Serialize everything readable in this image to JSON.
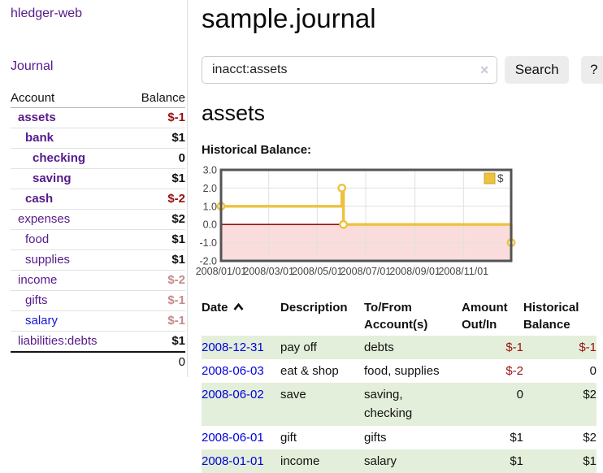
{
  "brand": "hledger-web",
  "sidebar": {
    "journal_link": "Journal",
    "accounts": {
      "col_account": "Account",
      "col_balance": "Balance",
      "rows": [
        {
          "name": "assets",
          "depth": 1,
          "bold": true,
          "balance": "$-1",
          "tone": "neg"
        },
        {
          "name": "bank",
          "depth": 2,
          "bold": true,
          "balance": "$1",
          "tone": "pos"
        },
        {
          "name": "checking",
          "depth": 3,
          "bold": true,
          "balance": "0",
          "tone": "pos"
        },
        {
          "name": "saving",
          "depth": 3,
          "bold": true,
          "balance": "$1",
          "tone": "pos"
        },
        {
          "name": "cash",
          "depth": 2,
          "bold": true,
          "balance": "$-2",
          "tone": "neg"
        },
        {
          "name": "expenses",
          "depth": 1,
          "bold": false,
          "balance": "$2",
          "tone": "pos"
        },
        {
          "name": "food",
          "depth": 2,
          "bold": false,
          "balance": "$1",
          "tone": "pos"
        },
        {
          "name": "supplies",
          "depth": 2,
          "bold": false,
          "balance": "$1",
          "tone": "pos"
        },
        {
          "name": "income",
          "depth": 1,
          "bold": false,
          "balance": "$-2",
          "tone": "neg-muted"
        },
        {
          "name": "gifts",
          "depth": 2,
          "bold": false,
          "balance": "$-1",
          "tone": "neg-muted"
        },
        {
          "name": "salary",
          "depth": 2,
          "bold": false,
          "balance": "$-1",
          "tone": "neg-muted",
          "link_style": "unvisited"
        },
        {
          "name": "liabilities:debts",
          "depth": 1,
          "bold": false,
          "balance": "$1",
          "tone": "pos"
        }
      ],
      "total": "0"
    }
  },
  "header": {
    "title": "sample.journal"
  },
  "search": {
    "value": "inacct:assets",
    "clear_icon": "✕",
    "search_button": "Search",
    "help_button": "?"
  },
  "account_page": {
    "heading": "assets",
    "chart_title": "Historical Balance:"
  },
  "chart_data": {
    "type": "line",
    "title": "Historical Balance:",
    "step": true,
    "xlim_days": [
      0,
      365
    ],
    "ylim": [
      -2,
      3
    ],
    "yticks": [
      {
        "value": 3,
        "label": "3.0"
      },
      {
        "value": 2,
        "label": "2.0"
      },
      {
        "value": 1,
        "label": "1.0"
      },
      {
        "value": 0,
        "label": "0.0"
      },
      {
        "value": -1,
        "label": "-1.0"
      },
      {
        "value": -2,
        "label": "-2.0"
      }
    ],
    "xticks": [
      {
        "day": 0,
        "label": "2008/01/01"
      },
      {
        "day": 60,
        "label": "2008/03/01"
      },
      {
        "day": 121,
        "label": "2008/05/01"
      },
      {
        "day": 182,
        "label": "2008/07/01"
      },
      {
        "day": 244,
        "label": "2008/09/01"
      },
      {
        "day": 305,
        "label": "2008/11/01"
      }
    ],
    "series": [
      {
        "name": "$",
        "color": "#edc240",
        "points": [
          {
            "date": "2008-01-01",
            "day": 0,
            "value": 1
          },
          {
            "date": "2008-06-01",
            "day": 152,
            "value": 2
          },
          {
            "date": "2008-06-03",
            "day": 154,
            "value": 0
          },
          {
            "date": "2008-12-31",
            "day": 365,
            "value": -1
          }
        ]
      }
    ],
    "legend": {
      "label": "$",
      "position": "top-right"
    },
    "styles": {
      "negative_region_fill": "#fbdcdc",
      "zero_line_color": "#991111",
      "grid_color": "#e0e0e0",
      "border_color": "#545454",
      "marker_fill": "#ffffff",
      "tick_label_color": "#444444"
    }
  },
  "transactions": {
    "columns": [
      "Date",
      "Description",
      "To/From Account(s)",
      "Amount Out/In",
      "Historical Balance"
    ],
    "sort_icon": "chevron-up",
    "rows": [
      {
        "date": "2008-12-31",
        "description": "pay off",
        "accounts": "debts",
        "amount": "$-1",
        "amount_negative": true,
        "balance": "$-1",
        "balance_negative": true
      },
      {
        "date": "2008-06-03",
        "description": "eat & shop",
        "accounts": "food, supplies",
        "amount": "$-2",
        "amount_negative": true,
        "balance": "0",
        "balance_negative": false
      },
      {
        "date": "2008-06-02",
        "description": "save",
        "accounts": "saving, checking",
        "amount": "0",
        "amount_negative": false,
        "balance": "$2",
        "balance_negative": false
      },
      {
        "date": "2008-06-01",
        "description": "gift",
        "accounts": "gifts",
        "amount": "$1",
        "amount_negative": false,
        "balance": "$2",
        "balance_negative": false
      },
      {
        "date": "2008-01-01",
        "description": "income",
        "accounts": "salary",
        "amount": "$1",
        "amount_negative": false,
        "balance": "$1",
        "balance_negative": false
      }
    ]
  }
}
